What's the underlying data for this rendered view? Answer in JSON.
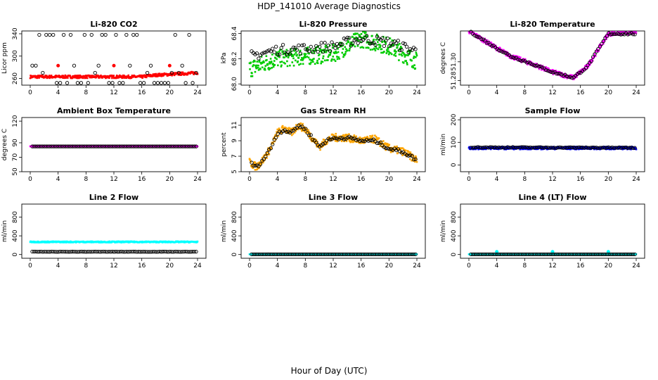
{
  "page_title": "HDP_141010  Average Diagnostics",
  "x_axis_label": "Hour of Day (UTC)",
  "chart_data": [
    {
      "type": "scatter",
      "title": "Li-820 CO2",
      "ylabel": "Licor ppm",
      "xlim": [
        0,
        24
      ],
      "ylim": [
        248,
        345
      ],
      "yticks": [
        260,
        300,
        340
      ],
      "xticks": [
        0,
        4,
        8,
        12,
        16,
        20,
        24
      ],
      "series": [
        {
          "name": "raw",
          "color": "#ff0000",
          "style": "dots",
          "base": 263,
          "noise": 2.5,
          "trend": [
            [
              0,
              263
            ],
            [
              16,
              263
            ],
            [
              18,
              266
            ],
            [
              24,
              270
            ]
          ],
          "spikes": [
            [
              4,
              283
            ],
            [
              12,
              283
            ],
            [
              20,
              283
            ]
          ]
        },
        {
          "name": "avg",
          "color": "#000000",
          "style": "circles",
          "upper": 338,
          "mid1": 283,
          "mid2": 270,
          "lower": 252
        }
      ]
    },
    {
      "type": "scatter",
      "title": "Li-820 Pressure",
      "ylabel": "kPa",
      "xlim": [
        0,
        24
      ],
      "ylim": [
        67.99,
        68.42
      ],
      "yticks": [
        68.0,
        68.2,
        68.4
      ],
      "yfmt": "1",
      "xticks": [
        0,
        4,
        8,
        12,
        16,
        20,
        24
      ],
      "series": [
        {
          "name": "raw",
          "color": "#00cc00",
          "style": "dots",
          "trend": [
            [
              0,
              68.12
            ],
            [
              4,
              68.2
            ],
            [
              8,
              68.22
            ],
            [
              12,
              68.24
            ],
            [
              16,
              68.36
            ],
            [
              20,
              68.3
            ],
            [
              24,
              68.18
            ]
          ],
          "noise": 0.07
        },
        {
          "name": "avg",
          "color": "#000000",
          "style": "circles",
          "trend": [
            [
              0,
              68.22
            ],
            [
              4,
              68.27
            ],
            [
              8,
              68.28
            ],
            [
              12,
              68.3
            ],
            [
              16,
              68.36
            ],
            [
              20,
              68.33
            ],
            [
              24,
              68.26
            ]
          ],
          "noise": 0.04
        }
      ]
    },
    {
      "type": "scatter",
      "title": "Li-820 Temperature",
      "ylabel": "degrees C",
      "xlim": [
        0,
        24
      ],
      "ylim": [
        51.275,
        51.333
      ],
      "yticks": [
        51.28,
        51.3
      ],
      "yfmt": "2",
      "xticks": [
        0,
        4,
        8,
        12,
        16,
        20,
        24
      ],
      "series": [
        {
          "name": "raw",
          "color": "#ff00ff",
          "style": "dots",
          "trend": [
            [
              0,
              51.333
            ],
            [
              3,
              51.319
            ],
            [
              6,
              51.306
            ],
            [
              9,
              51.298
            ],
            [
              12,
              51.289
            ],
            [
              15,
              51.283
            ],
            [
              17,
              51.295
            ],
            [
              20,
              51.33
            ],
            [
              24,
              51.332
            ]
          ],
          "noise": 0.0025
        },
        {
          "name": "avg",
          "color": "#000000",
          "style": "circles",
          "trend": [
            [
              0,
              51.333
            ],
            [
              3,
              51.319
            ],
            [
              6,
              51.306
            ],
            [
              9,
              51.298
            ],
            [
              12,
              51.289
            ],
            [
              15,
              51.283
            ],
            [
              17,
              51.295
            ],
            [
              20,
              51.33
            ],
            [
              24,
              51.33
            ]
          ],
          "noise": 0.001
        }
      ]
    },
    {
      "type": "scatter",
      "title": "Ambient Box Temperature",
      "ylabel": "degrees C",
      "xlim": [
        0,
        24
      ],
      "ylim": [
        50,
        125
      ],
      "yticks": [
        50,
        70,
        90,
        120
      ],
      "xticks": [
        0,
        4,
        8,
        12,
        16,
        20,
        24
      ],
      "series": [
        {
          "name": "raw",
          "color": "#ff00ff",
          "style": "dots",
          "trend": [
            [
              0,
              85
            ],
            [
              24,
              85
            ]
          ],
          "noise": 0.2
        },
        {
          "name": "avg",
          "color": "#000000",
          "style": "circles",
          "trend": [
            [
              0,
              85
            ],
            [
              24,
              85
            ]
          ],
          "noise": 0
        }
      ]
    },
    {
      "type": "scatter",
      "title": "Gas Stream RH",
      "ylabel": "percent",
      "xlim": [
        0,
        24
      ],
      "ylim": [
        5,
        12
      ],
      "yticks": [
        5,
        7,
        9,
        11
      ],
      "xticks": [
        0,
        4,
        8,
        12,
        16,
        20,
        24
      ],
      "series": [
        {
          "name": "raw",
          "color": "#ffa500",
          "style": "dots",
          "trend": [
            [
              0,
              6.2
            ],
            [
              1,
              5.6
            ],
            [
              2,
              6.6
            ],
            [
              3,
              8
            ],
            [
              4,
              10
            ],
            [
              5,
              10.6
            ],
            [
              6,
              10
            ],
            [
              7,
              11
            ],
            [
              8,
              10.5
            ],
            [
              10,
              8.2
            ],
            [
              11,
              9
            ],
            [
              12,
              9.4
            ],
            [
              13,
              9.4
            ],
            [
              14,
              9.4
            ],
            [
              16,
              9
            ],
            [
              18,
              9.2
            ],
            [
              20,
              8
            ],
            [
              22,
              7.6
            ],
            [
              24,
              6.5
            ]
          ],
          "noise": 0.5
        },
        {
          "name": "avg",
          "color": "#000000",
          "style": "circles",
          "trend": [
            [
              0,
              6.2
            ],
            [
              1,
              5.6
            ],
            [
              2,
              6.6
            ],
            [
              3,
              8
            ],
            [
              4,
              10
            ],
            [
              5,
              10.4
            ],
            [
              6,
              10
            ],
            [
              7,
              11
            ],
            [
              8,
              10.5
            ],
            [
              10,
              8.2
            ],
            [
              11,
              9
            ],
            [
              12,
              9.3
            ],
            [
              14,
              9.4
            ],
            [
              16,
              9
            ],
            [
              18,
              9
            ],
            [
              20,
              8
            ],
            [
              22,
              7.6
            ],
            [
              24,
              6.5
            ]
          ],
          "noise": 0.2
        }
      ]
    },
    {
      "type": "scatter",
      "title": "Sample Flow",
      "ylabel": "ml/min",
      "xlim": [
        0,
        24
      ],
      "ylim": [
        -30,
        210
      ],
      "yticks": [
        0,
        100,
        200
      ],
      "xticks": [
        0,
        4,
        8,
        12,
        16,
        20,
        24
      ],
      "series": [
        {
          "name": "raw",
          "color": "#0000ff",
          "style": "dots",
          "trend": [
            [
              0,
              75
            ],
            [
              24,
              75
            ]
          ],
          "noise": 6
        },
        {
          "name": "avg",
          "color": "#000000",
          "style": "circles",
          "trend": [
            [
              0,
              78
            ],
            [
              24,
              76
            ]
          ],
          "noise": 2
        }
      ]
    },
    {
      "type": "scatter",
      "title": "Line 2 Flow",
      "ylabel": "ml/min",
      "xlim": [
        0,
        24
      ],
      "ylim": [
        -80,
        1080
      ],
      "yticks": [
        0,
        400,
        800
      ],
      "xticks": [
        0,
        4,
        8,
        12,
        16,
        20,
        24
      ],
      "series": [
        {
          "name": "raw",
          "color": "#00ffff",
          "style": "dots",
          "trend": [
            [
              0,
              270
            ],
            [
              24,
              270
            ]
          ],
          "noise": 12
        },
        {
          "name": "avg",
          "color": "#000000",
          "style": "circles",
          "trend": [
            [
              0,
              60
            ],
            [
              24,
              60
            ]
          ],
          "noise": 3
        }
      ]
    },
    {
      "type": "scatter",
      "title": "Line 3 Flow",
      "ylabel": "ml/min",
      "xlim": [
        0,
        24
      ],
      "ylim": [
        -80,
        1080
      ],
      "yticks": [
        0,
        400,
        800
      ],
      "xticks": [
        0,
        4,
        8,
        12,
        16,
        20,
        24
      ],
      "series": [
        {
          "name": "raw",
          "color": "#00ffff",
          "style": "dots",
          "trend": [
            [
              0,
              5
            ],
            [
              24,
              5
            ]
          ],
          "noise": 2
        },
        {
          "name": "avg",
          "color": "#000000",
          "style": "circles",
          "trend": [
            [
              0,
              5
            ],
            [
              24,
              5
            ]
          ],
          "noise": 0
        }
      ]
    },
    {
      "type": "scatter",
      "title": "Line 4 (LT) Flow",
      "ylabel": "ml/min",
      "xlim": [
        0,
        24
      ],
      "ylim": [
        -80,
        1080
      ],
      "yticks": [
        0,
        400,
        800
      ],
      "xticks": [
        0,
        4,
        8,
        12,
        16,
        20,
        24
      ],
      "series": [
        {
          "name": "raw",
          "color": "#00ffff",
          "style": "dots",
          "trend": [
            [
              0,
              5
            ],
            [
              24,
              5
            ]
          ],
          "noise": 2,
          "spikes": [
            [
              4,
              60
            ],
            [
              12,
              60
            ],
            [
              20,
              60
            ]
          ]
        },
        {
          "name": "avg",
          "color": "#000000",
          "style": "circles",
          "trend": [
            [
              0,
              5
            ],
            [
              24,
              5
            ]
          ],
          "noise": 0
        }
      ]
    }
  ]
}
